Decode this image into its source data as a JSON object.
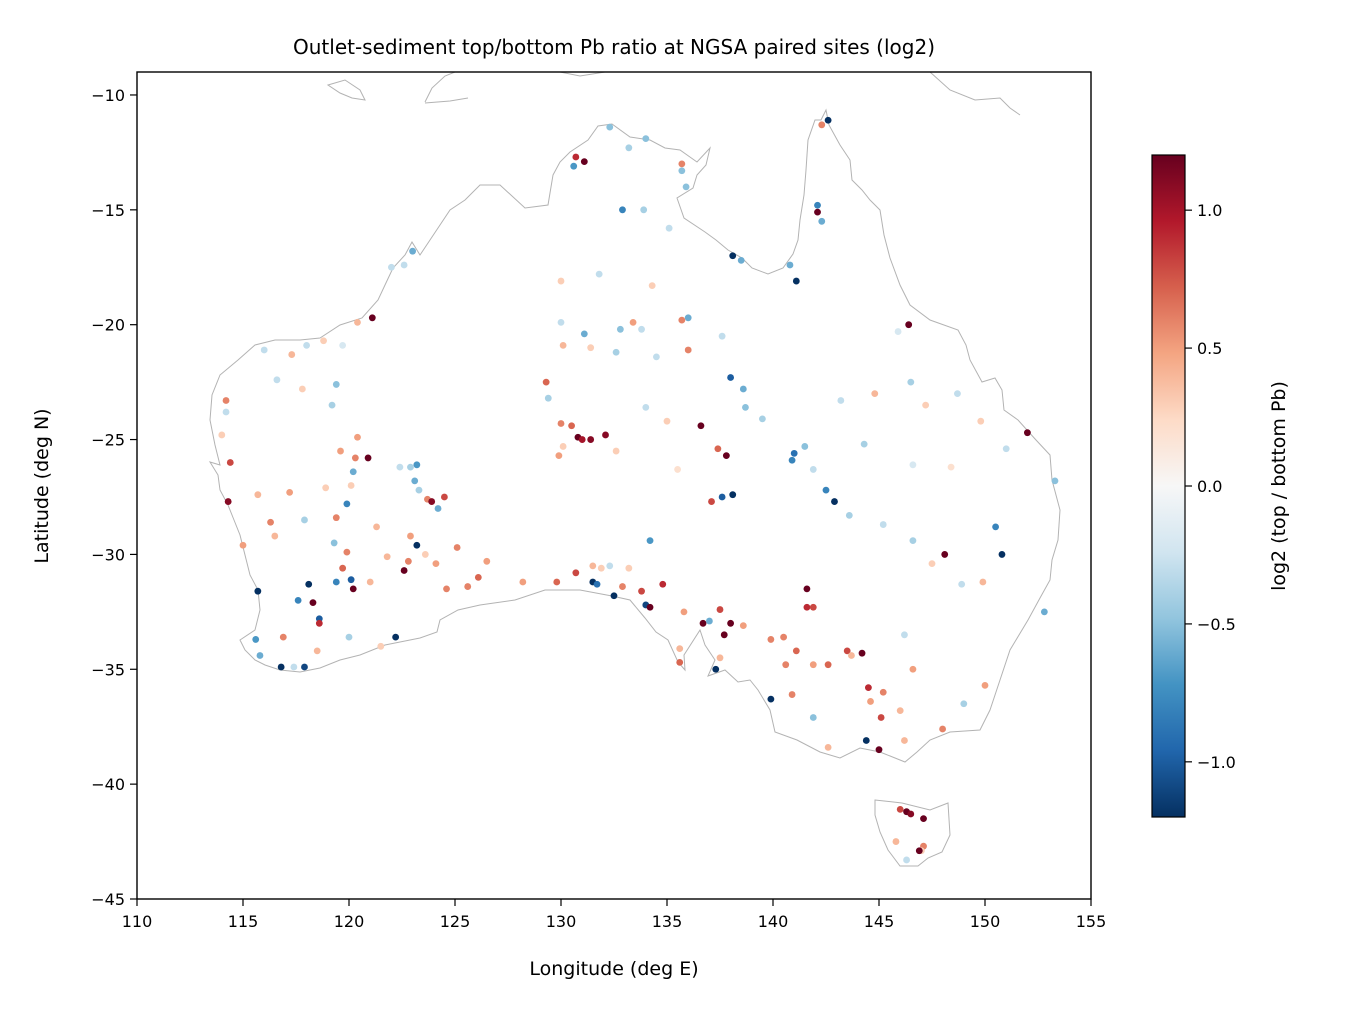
{
  "chart_data": {
    "type": "scatter",
    "title": "Outlet-sediment top/bottom Pb ratio at NGSA paired sites (log2)",
    "xlabel": "Longitude (deg E)",
    "ylabel": "Latitude (deg N)",
    "xlim": [
      110,
      155
    ],
    "ylim": [
      -45,
      -9
    ],
    "x_ticks": [
      110,
      115,
      120,
      125,
      130,
      135,
      140,
      145,
      150,
      155
    ],
    "x_tick_labels": [
      "110",
      "115",
      "120",
      "125",
      "130",
      "135",
      "140",
      "145",
      "150",
      "155"
    ],
    "y_ticks": [
      -45,
      -40,
      -35,
      -30,
      -25,
      -20,
      -15,
      -10
    ],
    "y_tick_labels": [
      "−45",
      "−40",
      "−35",
      "−30",
      "−25",
      "−20",
      "−15",
      "−10"
    ],
    "colorbar": {
      "label": "log2 (top / bottom Pb)",
      "colormap": "RdBu_r",
      "range": [
        -1.2,
        1.2
      ],
      "ticks": [
        -1.0,
        -0.5,
        0.0,
        0.5,
        1.0
      ],
      "tick_labels": [
        "−1.0",
        "−0.5",
        "0.0",
        "0.5",
        "1.0"
      ]
    },
    "grid": false,
    "coastline_color": "#b3b3b3",
    "points": [
      {
        "lon": 142.6,
        "lat": -11.1,
        "v": -1.2
      },
      {
        "lon": 142.3,
        "lat": -11.3,
        "v": 0.6
      },
      {
        "lon": 131.1,
        "lat": -12.9,
        "v": 1.2
      },
      {
        "lon": 130.7,
        "lat": -12.7,
        "v": 0.9
      },
      {
        "lon": 130.6,
        "lat": -13.1,
        "v": -0.7
      },
      {
        "lon": 132.3,
        "lat": -11.4,
        "v": -0.5
      },
      {
        "lon": 133.2,
        "lat": -12.3,
        "v": -0.4
      },
      {
        "lon": 134.0,
        "lat": -11.9,
        "v": -0.5
      },
      {
        "lon": 135.7,
        "lat": -13.0,
        "v": 0.6
      },
      {
        "lon": 135.7,
        "lat": -13.3,
        "v": -0.5
      },
      {
        "lon": 135.9,
        "lat": -14.0,
        "v": -0.5
      },
      {
        "lon": 132.9,
        "lat": -15.0,
        "v": -0.8
      },
      {
        "lon": 133.9,
        "lat": -15.0,
        "v": -0.4
      },
      {
        "lon": 135.1,
        "lat": -15.8,
        "v": -0.3
      },
      {
        "lon": 138.1,
        "lat": -17.0,
        "v": -1.2
      },
      {
        "lon": 138.5,
        "lat": -17.2,
        "v": -0.6
      },
      {
        "lon": 141.1,
        "lat": -18.1,
        "v": -1.2
      },
      {
        "lon": 142.1,
        "lat": -15.1,
        "v": 1.2
      },
      {
        "lon": 142.1,
        "lat": -14.8,
        "v": -0.8
      },
      {
        "lon": 142.3,
        "lat": -15.5,
        "v": -0.6
      },
      {
        "lon": 140.8,
        "lat": -17.4,
        "v": -0.6
      },
      {
        "lon": 121.1,
        "lat": -19.7,
        "v": 1.2
      },
      {
        "lon": 120.4,
        "lat": -19.9,
        "v": 0.4
      },
      {
        "lon": 123.0,
        "lat": -16.8,
        "v": -0.6
      },
      {
        "lon": 122.6,
        "lat": -17.4,
        "v": -0.3
      },
      {
        "lon": 122.0,
        "lat": -17.5,
        "v": -0.3
      },
      {
        "lon": 146.4,
        "lat": -20.0,
        "v": 1.2
      },
      {
        "lon": 152.0,
        "lat": -24.7,
        "v": 1.2
      },
      {
        "lon": 153.3,
        "lat": -26.8,
        "v": -0.5
      },
      {
        "lon": 150.8,
        "lat": -30.0,
        "v": -1.2
      },
      {
        "lon": 148.1,
        "lat": -30.0,
        "v": 1.2
      },
      {
        "lon": 150.5,
        "lat": -28.8,
        "v": -0.8
      },
      {
        "lon": 152.8,
        "lat": -32.5,
        "v": -0.6
      },
      {
        "lon": 149.9,
        "lat": -31.2,
        "v": 0.4
      },
      {
        "lon": 145.9,
        "lat": -20.3,
        "v": -0.2
      },
      {
        "lon": 143.2,
        "lat": -23.3,
        "v": -0.3
      },
      {
        "lon": 144.8,
        "lat": -23.0,
        "v": 0.4
      },
      {
        "lon": 146.5,
        "lat": -22.5,
        "v": -0.4
      },
      {
        "lon": 147.2,
        "lat": -23.5,
        "v": 0.3
      },
      {
        "lon": 148.7,
        "lat": -23.0,
        "v": -0.3
      },
      {
        "lon": 149.8,
        "lat": -24.2,
        "v": 0.3
      },
      {
        "lon": 151.0,
        "lat": -25.4,
        "v": -0.3
      },
      {
        "lon": 148.4,
        "lat": -26.2,
        "v": 0.2
      },
      {
        "lon": 146.6,
        "lat": -26.1,
        "v": -0.2
      },
      {
        "lon": 144.3,
        "lat": -25.2,
        "v": -0.4
      },
      {
        "lon": 142.9,
        "lat": -27.7,
        "v": -1.2
      },
      {
        "lon": 142.5,
        "lat": -27.2,
        "v": -0.8
      },
      {
        "lon": 141.0,
        "lat": -25.6,
        "v": -0.9
      },
      {
        "lon": 140.9,
        "lat": -25.9,
        "v": -0.8
      },
      {
        "lon": 141.5,
        "lat": -25.3,
        "v": -0.5
      },
      {
        "lon": 141.9,
        "lat": -26.3,
        "v": -0.3
      },
      {
        "lon": 143.6,
        "lat": -28.3,
        "v": -0.4
      },
      {
        "lon": 145.2,
        "lat": -28.7,
        "v": -0.3
      },
      {
        "lon": 146.6,
        "lat": -29.4,
        "v": -0.4
      },
      {
        "lon": 147.5,
        "lat": -30.4,
        "v": 0.3
      },
      {
        "lon": 148.9,
        "lat": -31.3,
        "v": -0.3
      },
      {
        "lon": 138.1,
        "lat": -27.4,
        "v": -1.2
      },
      {
        "lon": 137.6,
        "lat": -27.5,
        "v": -1.0
      },
      {
        "lon": 137.8,
        "lat": -25.7,
        "v": 1.2
      },
      {
        "lon": 136.6,
        "lat": -24.4,
        "v": 1.2
      },
      {
        "lon": 137.4,
        "lat": -25.4,
        "v": 0.7
      },
      {
        "lon": 137.1,
        "lat": -27.7,
        "v": 0.8
      },
      {
        "lon": 138.0,
        "lat": -22.3,
        "v": -1.0
      },
      {
        "lon": 138.6,
        "lat": -22.8,
        "v": -0.6
      },
      {
        "lon": 138.7,
        "lat": -23.6,
        "v": -0.5
      },
      {
        "lon": 139.5,
        "lat": -24.1,
        "v": -0.4
      },
      {
        "lon": 137.6,
        "lat": -20.5,
        "v": -0.3
      },
      {
        "lon": 136.0,
        "lat": -19.7,
        "v": -0.6
      },
      {
        "lon": 135.7,
        "lat": -19.8,
        "v": 0.6
      },
      {
        "lon": 136.0,
        "lat": -21.1,
        "v": 0.6
      },
      {
        "lon": 134.5,
        "lat": -21.4,
        "v": -0.3
      },
      {
        "lon": 132.8,
        "lat": -20.2,
        "v": -0.5
      },
      {
        "lon": 130.0,
        "lat": -19.9,
        "v": -0.3
      },
      {
        "lon": 129.3,
        "lat": -22.5,
        "v": 0.7
      },
      {
        "lon": 129.4,
        "lat": -23.2,
        "v": -0.4
      },
      {
        "lon": 130.1,
        "lat": -20.9,
        "v": 0.4
      },
      {
        "lon": 131.1,
        "lat": -20.4,
        "v": -0.6
      },
      {
        "lon": 131.4,
        "lat": -21.0,
        "v": 0.3
      },
      {
        "lon": 132.6,
        "lat": -21.2,
        "v": -0.4
      },
      {
        "lon": 133.4,
        "lat": -19.9,
        "v": 0.5
      },
      {
        "lon": 133.8,
        "lat": -20.2,
        "v": -0.3
      },
      {
        "lon": 134.3,
        "lat": -18.3,
        "v": 0.3
      },
      {
        "lon": 131.8,
        "lat": -17.8,
        "v": -0.3
      },
      {
        "lon": 130.0,
        "lat": -18.1,
        "v": 0.3
      },
      {
        "lon": 130.0,
        "lat": -24.3,
        "v": 0.6
      },
      {
        "lon": 130.5,
        "lat": -24.4,
        "v": 0.7
      },
      {
        "lon": 130.8,
        "lat": -24.9,
        "v": 1.2
      },
      {
        "lon": 131.0,
        "lat": -25.0,
        "v": 1.0
      },
      {
        "lon": 131.4,
        "lat": -25.0,
        "v": 1.1
      },
      {
        "lon": 132.1,
        "lat": -24.8,
        "v": 1.1
      },
      {
        "lon": 130.1,
        "lat": -25.3,
        "v": 0.3
      },
      {
        "lon": 129.9,
        "lat": -25.7,
        "v": 0.5
      },
      {
        "lon": 132.6,
        "lat": -25.5,
        "v": 0.3
      },
      {
        "lon": 134.0,
        "lat": -23.6,
        "v": -0.3
      },
      {
        "lon": 135.0,
        "lat": -24.2,
        "v": 0.3
      },
      {
        "lon": 135.5,
        "lat": -26.3,
        "v": 0.2
      },
      {
        "lon": 134.2,
        "lat": -29.4,
        "v": -0.7
      },
      {
        "lon": 133.2,
        "lat": -30.6,
        "v": 0.3
      },
      {
        "lon": 131.9,
        "lat": -30.6,
        "v": 0.3
      },
      {
        "lon": 131.5,
        "lat": -31.2,
        "v": -1.2
      },
      {
        "lon": 131.7,
        "lat": -31.3,
        "v": -0.9
      },
      {
        "lon": 130.7,
        "lat": -30.8,
        "v": 0.8
      },
      {
        "lon": 131.5,
        "lat": -30.5,
        "v": 0.4
      },
      {
        "lon": 129.8,
        "lat": -31.2,
        "v": 0.7
      },
      {
        "lon": 128.2,
        "lat": -31.2,
        "v": 0.5
      },
      {
        "lon": 126.5,
        "lat": -30.3,
        "v": 0.5
      },
      {
        "lon": 132.3,
        "lat": -30.5,
        "v": -0.3
      },
      {
        "lon": 132.9,
        "lat": -31.4,
        "v": 0.6
      },
      {
        "lon": 132.5,
        "lat": -31.8,
        "v": -1.2
      },
      {
        "lon": 133.8,
        "lat": -31.6,
        "v": 0.8
      },
      {
        "lon": 134.8,
        "lat": -31.3,
        "v": 0.9
      },
      {
        "lon": 134.0,
        "lat": -32.2,
        "v": -1.1
      },
      {
        "lon": 134.2,
        "lat": -32.3,
        "v": 1.2
      },
      {
        "lon": 135.8,
        "lat": -32.5,
        "v": 0.5
      },
      {
        "lon": 136.7,
        "lat": -33.0,
        "v": 1.2
      },
      {
        "lon": 137.0,
        "lat": -32.9,
        "v": -0.6
      },
      {
        "lon": 137.5,
        "lat": -32.4,
        "v": 0.8
      },
      {
        "lon": 138.0,
        "lat": -33.0,
        "v": 1.2
      },
      {
        "lon": 137.7,
        "lat": -33.5,
        "v": 1.2
      },
      {
        "lon": 137.3,
        "lat": -35.0,
        "v": -1.2
      },
      {
        "lon": 137.5,
        "lat": -34.5,
        "v": 0.4
      },
      {
        "lon": 138.6,
        "lat": -33.1,
        "v": 0.5
      },
      {
        "lon": 135.6,
        "lat": -34.1,
        "v": 0.4
      },
      {
        "lon": 135.6,
        "lat": -34.7,
        "v": 0.7
      },
      {
        "lon": 139.9,
        "lat": -33.7,
        "v": 0.6
      },
      {
        "lon": 141.6,
        "lat": -31.5,
        "v": 1.2
      },
      {
        "lon": 141.6,
        "lat": -32.3,
        "v": 0.9
      },
      {
        "lon": 141.9,
        "lat": -32.3,
        "v": 0.8
      },
      {
        "lon": 140.5,
        "lat": -33.6,
        "v": 0.6
      },
      {
        "lon": 141.1,
        "lat": -34.2,
        "v": 0.7
      },
      {
        "lon": 140.6,
        "lat": -34.8,
        "v": 0.6
      },
      {
        "lon": 139.9,
        "lat": -36.3,
        "v": -1.2
      },
      {
        "lon": 140.9,
        "lat": -36.1,
        "v": 0.6
      },
      {
        "lon": 141.9,
        "lat": -34.8,
        "v": 0.5
      },
      {
        "lon": 142.6,
        "lat": -34.8,
        "v": 0.7
      },
      {
        "lon": 143.5,
        "lat": -34.2,
        "v": 0.8
      },
      {
        "lon": 144.2,
        "lat": -34.3,
        "v": 1.2
      },
      {
        "lon": 143.7,
        "lat": -34.4,
        "v": 0.4
      },
      {
        "lon": 144.5,
        "lat": -35.8,
        "v": 0.9
      },
      {
        "lon": 145.2,
        "lat": -36.0,
        "v": 0.6
      },
      {
        "lon": 144.6,
        "lat": -36.4,
        "v": 0.5
      },
      {
        "lon": 145.1,
        "lat": -37.1,
        "v": 0.8
      },
      {
        "lon": 146.0,
        "lat": -36.8,
        "v": 0.4
      },
      {
        "lon": 144.4,
        "lat": -38.1,
        "v": -1.2
      },
      {
        "lon": 145.0,
        "lat": -38.5,
        "v": 1.2
      },
      {
        "lon": 146.2,
        "lat": -38.1,
        "v": 0.4
      },
      {
        "lon": 141.9,
        "lat": -37.1,
        "v": -0.5
      },
      {
        "lon": 142.6,
        "lat": -38.4,
        "v": 0.4
      },
      {
        "lon": 148.0,
        "lat": -37.6,
        "v": 0.6
      },
      {
        "lon": 149.0,
        "lat": -36.5,
        "v": -0.4
      },
      {
        "lon": 146.6,
        "lat": -35.0,
        "v": 0.5
      },
      {
        "lon": 146.2,
        "lat": -33.5,
        "v": -0.3
      },
      {
        "lon": 150.0,
        "lat": -35.7,
        "v": 0.5
      },
      {
        "lon": 146.0,
        "lat": -41.1,
        "v": 0.8
      },
      {
        "lon": 146.3,
        "lat": -41.2,
        "v": 1.2
      },
      {
        "lon": 146.5,
        "lat": -41.3,
        "v": 1.1
      },
      {
        "lon": 147.1,
        "lat": -41.5,
        "v": 1.2
      },
      {
        "lon": 145.8,
        "lat": -42.5,
        "v": 0.4
      },
      {
        "lon": 147.1,
        "lat": -42.7,
        "v": 0.6
      },
      {
        "lon": 147.0,
        "lat": -42.9,
        "v": 0.3
      },
      {
        "lon": 146.9,
        "lat": -42.9,
        "v": 1.2
      },
      {
        "lon": 146.3,
        "lat": -43.3,
        "v": -0.3
      },
      {
        "lon": 114.2,
        "lat": -23.3,
        "v": 0.6
      },
      {
        "lon": 114.2,
        "lat": -23.8,
        "v": -0.3
      },
      {
        "lon": 114.0,
        "lat": -24.8,
        "v": 0.3
      },
      {
        "lon": 114.4,
        "lat": -26.0,
        "v": 0.8
      },
      {
        "lon": 114.3,
        "lat": -27.7,
        "v": 1.1
      },
      {
        "lon": 115.7,
        "lat": -27.4,
        "v": 0.4
      },
      {
        "lon": 115.0,
        "lat": -29.6,
        "v": 0.5
      },
      {
        "lon": 115.7,
        "lat": -31.6,
        "v": -1.2
      },
      {
        "lon": 115.6,
        "lat": -33.7,
        "v": -0.7
      },
      {
        "lon": 115.8,
        "lat": -34.4,
        "v": -0.6
      },
      {
        "lon": 116.8,
        "lat": -34.9,
        "v": -1.2
      },
      {
        "lon": 117.4,
        "lat": -34.9,
        "v": -0.3
      },
      {
        "lon": 117.9,
        "lat": -34.9,
        "v": -1.1
      },
      {
        "lon": 118.1,
        "lat": -31.3,
        "v": -1.2
      },
      {
        "lon": 117.6,
        "lat": -32.0,
        "v": -0.8
      },
      {
        "lon": 118.3,
        "lat": -32.1,
        "v": 1.2
      },
      {
        "lon": 118.6,
        "lat": -32.8,
        "v": -1.0
      },
      {
        "lon": 118.6,
        "lat": -33.0,
        "v": 0.9
      },
      {
        "lon": 119.4,
        "lat": -31.2,
        "v": -0.8
      },
      {
        "lon": 120.2,
        "lat": -31.5,
        "v": 1.2
      },
      {
        "lon": 120.1,
        "lat": -31.1,
        "v": -1.0
      },
      {
        "lon": 119.7,
        "lat": -30.6,
        "v": 0.7
      },
      {
        "lon": 119.9,
        "lat": -29.9,
        "v": 0.6
      },
      {
        "lon": 119.3,
        "lat": -29.5,
        "v": -0.5
      },
      {
        "lon": 117.9,
        "lat": -28.5,
        "v": -0.4
      },
      {
        "lon": 119.4,
        "lat": -28.4,
        "v": 0.6
      },
      {
        "lon": 119.9,
        "lat": -27.8,
        "v": -0.8
      },
      {
        "lon": 120.1,
        "lat": -27.0,
        "v": 0.3
      },
      {
        "lon": 120.2,
        "lat": -26.4,
        "v": -0.6
      },
      {
        "lon": 120.3,
        "lat": -25.8,
        "v": 0.6
      },
      {
        "lon": 120.9,
        "lat": -25.8,
        "v": 1.2
      },
      {
        "lon": 119.6,
        "lat": -25.5,
        "v": 0.5
      },
      {
        "lon": 122.4,
        "lat": -26.2,
        "v": -0.3
      },
      {
        "lon": 123.2,
        "lat": -26.1,
        "v": -0.7
      },
      {
        "lon": 122.9,
        "lat": -26.2,
        "v": -0.4
      },
      {
        "lon": 123.1,
        "lat": -26.8,
        "v": -0.6
      },
      {
        "lon": 123.3,
        "lat": -27.2,
        "v": -0.4
      },
      {
        "lon": 123.7,
        "lat": -27.6,
        "v": 0.6
      },
      {
        "lon": 123.9,
        "lat": -27.7,
        "v": 1.1
      },
      {
        "lon": 124.5,
        "lat": -27.5,
        "v": 0.8
      },
      {
        "lon": 124.2,
        "lat": -28.0,
        "v": -0.6
      },
      {
        "lon": 123.2,
        "lat": -29.6,
        "v": -1.2
      },
      {
        "lon": 122.9,
        "lat": -29.2,
        "v": 0.5
      },
      {
        "lon": 122.6,
        "lat": -30.7,
        "v": 1.2
      },
      {
        "lon": 122.8,
        "lat": -30.3,
        "v": 0.6
      },
      {
        "lon": 123.6,
        "lat": -30.0,
        "v": 0.3
      },
      {
        "lon": 124.1,
        "lat": -30.4,
        "v": 0.5
      },
      {
        "lon": 125.1,
        "lat": -29.7,
        "v": 0.6
      },
      {
        "lon": 124.6,
        "lat": -31.5,
        "v": 0.6
      },
      {
        "lon": 125.6,
        "lat": -31.4,
        "v": 0.6
      },
      {
        "lon": 126.1,
        "lat": -31.0,
        "v": 0.7
      },
      {
        "lon": 121.0,
        "lat": -31.2,
        "v": 0.4
      },
      {
        "lon": 121.8,
        "lat": -30.1,
        "v": 0.4
      },
      {
        "lon": 121.3,
        "lat": -28.8,
        "v": 0.4
      },
      {
        "lon": 120.0,
        "lat": -33.6,
        "v": -0.4
      },
      {
        "lon": 122.2,
        "lat": -33.6,
        "v": -1.2
      },
      {
        "lon": 121.5,
        "lat": -34.0,
        "v": 0.3
      },
      {
        "lon": 118.5,
        "lat": -34.2,
        "v": 0.4
      },
      {
        "lon": 116.9,
        "lat": -33.6,
        "v": 0.6
      },
      {
        "lon": 116.5,
        "lat": -29.2,
        "v": 0.4
      },
      {
        "lon": 116.3,
        "lat": -28.6,
        "v": 0.6
      },
      {
        "lon": 117.2,
        "lat": -27.3,
        "v": 0.5
      },
      {
        "lon": 118.9,
        "lat": -27.1,
        "v": 0.3
      },
      {
        "lon": 120.4,
        "lat": -24.9,
        "v": 0.5
      },
      {
        "lon": 119.2,
        "lat": -23.5,
        "v": -0.4
      },
      {
        "lon": 119.4,
        "lat": -22.6,
        "v": -0.5
      },
      {
        "lon": 117.8,
        "lat": -22.8,
        "v": 0.3
      },
      {
        "lon": 116.6,
        "lat": -22.4,
        "v": -0.3
      },
      {
        "lon": 117.3,
        "lat": -21.3,
        "v": 0.4
      },
      {
        "lon": 116.0,
        "lat": -21.1,
        "v": -0.3
      },
      {
        "lon": 118.0,
        "lat": -20.9,
        "v": -0.3
      },
      {
        "lon": 118.8,
        "lat": -20.7,
        "v": 0.3
      },
      {
        "lon": 119.7,
        "lat": -20.9,
        "v": -0.2
      }
    ]
  }
}
